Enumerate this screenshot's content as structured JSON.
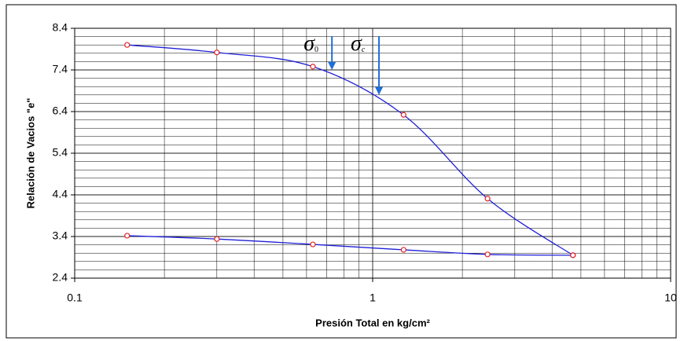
{
  "chart_data": {
    "type": "line",
    "xlabel": "Presión Total en kg/cm²",
    "ylabel": "Relación de Vacios \"e\"",
    "series": [
      {
        "color": "#1f1fd8",
        "marker_color": "#e0242a",
        "x": [
          0.15,
          0.3,
          0.63,
          1.27,
          2.43,
          4.7
        ],
        "values": [
          8.0,
          7.82,
          7.48,
          6.32,
          4.31,
          2.95
        ]
      },
      {
        "color": "#1f1fd8",
        "marker_color": "#e0242a",
        "x": [
          0.15,
          0.3,
          0.63,
          1.27,
          2.43,
          4.7
        ],
        "values": [
          3.42,
          3.34,
          3.21,
          3.08,
          2.97,
          2.95
        ]
      }
    ],
    "xlim": [
      0.1,
      10
    ],
    "xticks": [
      0.1,
      1,
      10
    ],
    "xscale": "log",
    "ylim": [
      2.4,
      8.4
    ],
    "yticks": [
      2.4,
      3.4,
      4.4,
      5.4,
      6.4,
      7.4,
      8.4
    ],
    "grid": true,
    "minor_grid": true,
    "annotations": [
      {
        "symbol": "σ",
        "sub": "0",
        "x": 0.73,
        "y": 7.4,
        "color": "#1f6fd8"
      },
      {
        "symbol": "σ",
        "sub": "c",
        "x": 1.05,
        "y": 6.8,
        "color": "#1f6fd8"
      }
    ]
  }
}
